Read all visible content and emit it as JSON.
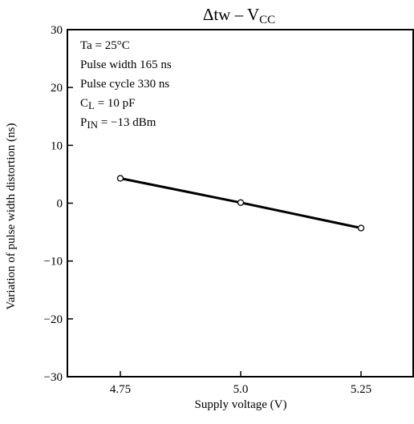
{
  "chart_data": {
    "type": "line",
    "title_prefix": "Δtw – V",
    "title_sub": "CC",
    "xlabel": "Supply voltage (V)",
    "ylabel": "Variation of pulse width distortion (ns)",
    "xlim": [
      4.64,
      5.36
    ],
    "ylim": [
      -30,
      30
    ],
    "x_ticks": [
      4.75,
      5.0,
      5.25
    ],
    "x_tick_labels": [
      "4.75",
      "5.0",
      "5.25"
    ],
    "y_ticks": [
      30,
      20,
      10,
      0,
      -10,
      -20,
      -30
    ],
    "y_tick_labels": [
      "30",
      "20",
      "10",
      "0",
      "−10",
      "−20",
      "−30"
    ],
    "grid": false,
    "annotations": {
      "ta": "Ta = 25°C",
      "pulse_width": "Pulse width 165 ns",
      "pulse_cycle": "Pulse cycle 330 ns",
      "cl_prefix": "C",
      "cl_sub": "L",
      "cl_value": " = 10 pF",
      "pin_prefix": "P",
      "pin_sub": "IN",
      "pin_value": " = −13 dBm"
    },
    "series": [
      {
        "x": [
          4.75,
          5.0,
          5.25
        ],
        "y": [
          4.3,
          0.1,
          -4.3
        ]
      }
    ]
  }
}
